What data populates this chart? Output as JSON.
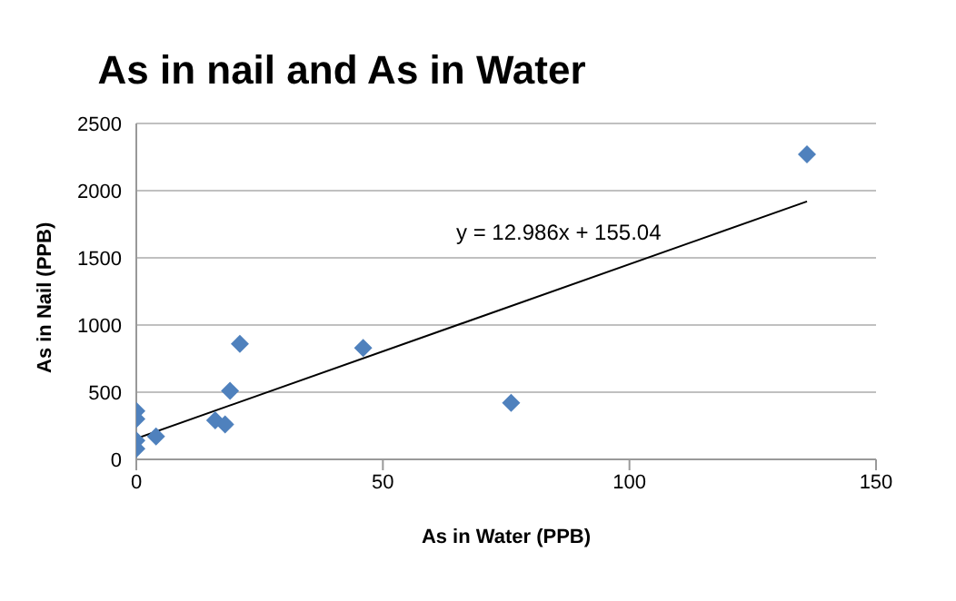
{
  "chart_data": {
    "type": "scatter",
    "title": "As in nail and As in Water",
    "xlabel": "As in Water (PPB)",
    "ylabel": "As in Nail (PPB)",
    "xlim": [
      0,
      150
    ],
    "xticks": [
      0,
      50,
      100,
      150
    ],
    "ylim": [
      0,
      2500
    ],
    "yticks": [
      0,
      500,
      1000,
      1500,
      2000,
      2500
    ],
    "grid": "y",
    "annotations": [
      "y = 12.986x + 155.04"
    ],
    "series": [
      {
        "color": "#4f81bd",
        "marker": "diamond",
        "x": [
          0,
          0,
          0,
          0,
          4,
          16,
          18,
          19,
          21,
          46,
          76,
          136
        ],
        "values": [
          360,
          300,
          140,
          80,
          170,
          290,
          260,
          510,
          860,
          830,
          420,
          2270
        ]
      },
      {
        "type": "line",
        "color": "#000000",
        "marker": "none",
        "x": [
          0,
          136
        ],
        "values": [
          155,
          1920
        ]
      }
    ]
  }
}
